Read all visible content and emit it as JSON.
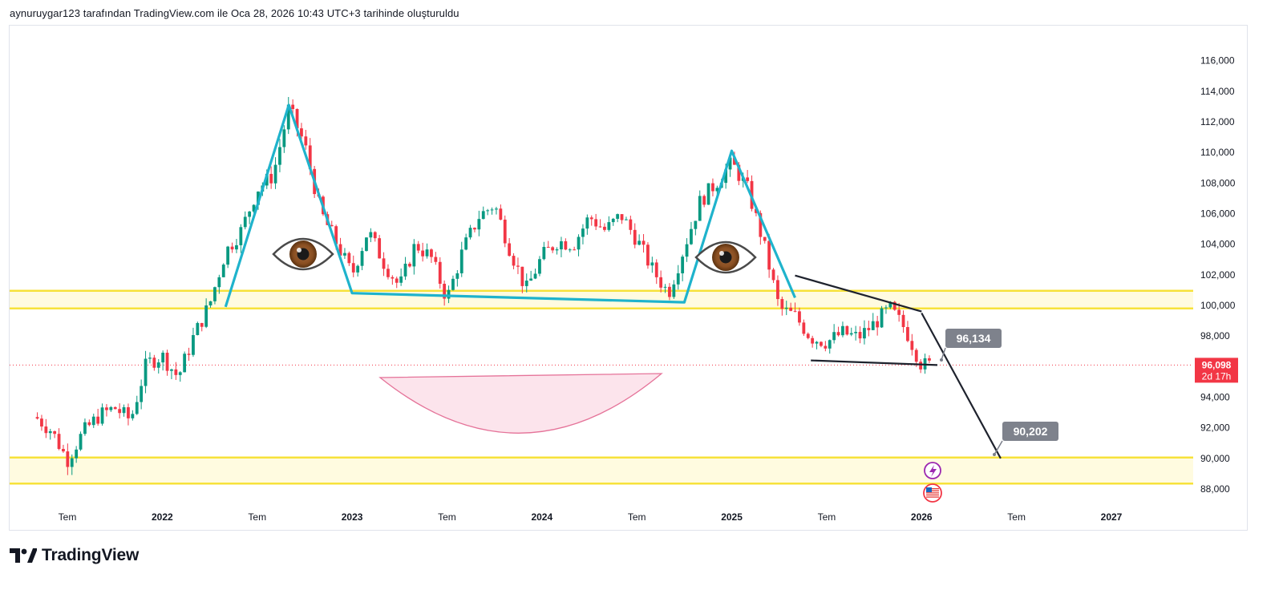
{
  "header": {
    "attribution": "aynuruygar123 tarafından TradingView.com ile Oca 28, 2026 10:43 UTC+3 tarihinde oluşturuldu"
  },
  "brand": {
    "name": "TradingView"
  },
  "chart_data": {
    "type": "candlestick",
    "y_axis_ticks": [
      "88,000",
      "90,000",
      "92,000",
      "94,000",
      "96,000",
      "98,000",
      "100,000",
      "102,000",
      "104,000",
      "106,000",
      "108,000",
      "110,000",
      "112,000",
      "114,000",
      "116,000"
    ],
    "ylim": [
      87000,
      117500
    ],
    "x_axis_ticks": [
      "Tem",
      "2022",
      "Tem",
      "2023",
      "Tem",
      "2024",
      "Tem",
      "2025",
      "Tem",
      "2026",
      "Tem",
      "2027"
    ],
    "x_axis_tick_dates": [
      "2021-07",
      "2022-01",
      "2022-07",
      "2023-01",
      "2023-07",
      "2024-01",
      "2024-07",
      "2025-01",
      "2025-07",
      "2026-01",
      "2026-07",
      "2027-01"
    ],
    "current_price": {
      "value": "96,098",
      "countdown": "2d 17h"
    },
    "callouts": [
      {
        "label": "96,134",
        "value": 96134
      },
      {
        "label": "90,202",
        "value": 90202
      }
    ],
    "zones": [
      {
        "name": "upper support/resistance",
        "from": 99800,
        "to": 100950
      },
      {
        "name": "lower support",
        "from": 88350,
        "to": 90050
      }
    ],
    "price_path_weekly_close": [
      {
        "date": "2021-05",
        "value": 92700
      },
      {
        "date": "2021-06",
        "value": 91800
      },
      {
        "date": "2021-07",
        "value": 89900
      },
      {
        "date": "2021-08",
        "value": 91700
      },
      {
        "date": "2021-09",
        "value": 92800
      },
      {
        "date": "2021-10",
        "value": 93300
      },
      {
        "date": "2021-11",
        "value": 92500
      },
      {
        "date": "2021-12",
        "value": 96200
      },
      {
        "date": "2022-01",
        "value": 96700
      },
      {
        "date": "2022-02",
        "value": 95300
      },
      {
        "date": "2022-03",
        "value": 98000
      },
      {
        "date": "2022-04",
        "value": 100100
      },
      {
        "date": "2022-05",
        "value": 103500
      },
      {
        "date": "2022-06",
        "value": 104900
      },
      {
        "date": "2022-07",
        "value": 107600
      },
      {
        "date": "2022-08",
        "value": 108500
      },
      {
        "date": "2022-09",
        "value": 112900
      },
      {
        "date": "2022-10",
        "value": 110500
      },
      {
        "date": "2022-11",
        "value": 106100
      },
      {
        "date": "2022-12",
        "value": 104100
      },
      {
        "date": "2023-01",
        "value": 102000
      },
      {
        "date": "2023-02",
        "value": 104900
      },
      {
        "date": "2023-03",
        "value": 102800
      },
      {
        "date": "2023-04",
        "value": 101200
      },
      {
        "date": "2023-05",
        "value": 104000
      },
      {
        "date": "2023-06",
        "value": 103100
      },
      {
        "date": "2023-07",
        "value": 100400
      },
      {
        "date": "2023-08",
        "value": 103600
      },
      {
        "date": "2023-09",
        "value": 105800
      },
      {
        "date": "2023-10",
        "value": 106600
      },
      {
        "date": "2023-11",
        "value": 103600
      },
      {
        "date": "2023-12",
        "value": 101000
      },
      {
        "date": "2024-01",
        "value": 103200
      },
      {
        "date": "2024-02",
        "value": 104200
      },
      {
        "date": "2024-03",
        "value": 104000
      },
      {
        "date": "2024-04",
        "value": 105800
      },
      {
        "date": "2024-05",
        "value": 104900
      },
      {
        "date": "2024-06",
        "value": 105900
      },
      {
        "date": "2024-07",
        "value": 104300
      },
      {
        "date": "2024-08",
        "value": 102300
      },
      {
        "date": "2024-09",
        "value": 100800
      },
      {
        "date": "2024-10",
        "value": 103800
      },
      {
        "date": "2024-11",
        "value": 106800
      },
      {
        "date": "2024-12",
        "value": 108000
      },
      {
        "date": "2025-01",
        "value": 109300
      },
      {
        "date": "2025-02",
        "value": 107600
      },
      {
        "date": "2025-03",
        "value": 104100
      },
      {
        "date": "2025-04",
        "value": 99800
      },
      {
        "date": "2025-05",
        "value": 99300
      },
      {
        "date": "2025-06",
        "value": 97900
      },
      {
        "date": "2025-07",
        "value": 97600
      },
      {
        "date": "2025-08",
        "value": 98200
      },
      {
        "date": "2025-09",
        "value": 97900
      },
      {
        "date": "2025-10",
        "value": 98800
      },
      {
        "date": "2025-11",
        "value": 99800
      },
      {
        "date": "2025-12",
        "value": 98400
      },
      {
        "date": "2026-01",
        "value": 96100
      }
    ],
    "annotations": [
      {
        "type": "cyan pattern line",
        "points": [
          {
            "date": "2022-05",
            "value": 99900
          },
          {
            "date": "2022-09",
            "value": 113100
          },
          {
            "date": "2023-01",
            "value": 100800
          },
          {
            "date": "2024-10",
            "value": 100200
          },
          {
            "date": "2025-01",
            "value": 110100
          },
          {
            "date": "2025-05",
            "value": 100500
          }
        ]
      },
      {
        "type": "black descending trendline",
        "points": [
          {
            "date": "2025-05",
            "value": 101950
          },
          {
            "date": "2026-01",
            "value": 99600
          }
        ]
      },
      {
        "type": "black base line",
        "points": [
          {
            "date": "2025-06",
            "value": 96400
          },
          {
            "date": "2026-02",
            "value": 96100
          }
        ]
      },
      {
        "type": "black projection",
        "points": [
          {
            "date": "2026-01",
            "value": 99500
          },
          {
            "date": "2026-06",
            "value": 90000
          }
        ]
      }
    ],
    "drawings": [
      "eye-left-icon",
      "eye-right-icon",
      "smile-arc",
      "lightning-event-icon",
      "us-flag-event-icon"
    ]
  }
}
